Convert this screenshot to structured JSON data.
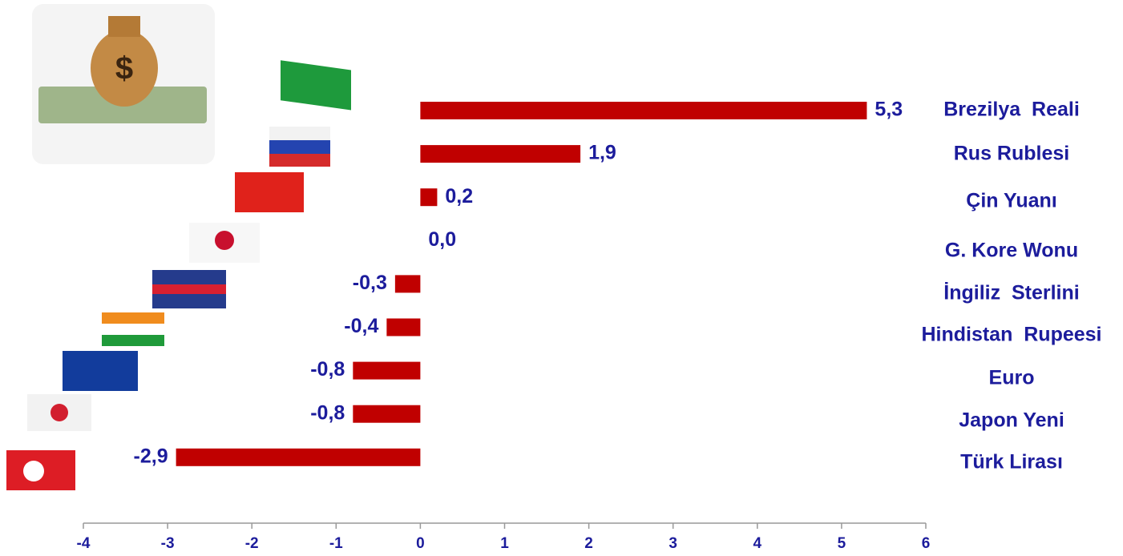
{
  "chart_data": {
    "type": "bar",
    "orientation": "horizontal",
    "categories": [
      "Brezilya  Reali",
      "Rus Rublesi",
      "Çin Yuanı",
      "G. Kore Wonu",
      "İngiliz  Sterlini",
      "Hindistan  Rupeesi",
      "Euro",
      "Japon Yeni",
      "Türk Lirası"
    ],
    "values": [
      5.3,
      1.9,
      0.2,
      0.0,
      -0.3,
      -0.4,
      -0.8,
      -0.8,
      -2.9
    ],
    "value_labels": [
      "5,3",
      "1,9",
      "0,2",
      "0,0",
      "-0,3",
      "-0,4",
      "-0,8",
      "-0,8",
      "-2,9"
    ],
    "color": "#c00000",
    "xlim": [
      -4,
      6
    ],
    "xticks": [
      -4,
      -3,
      -2,
      -1,
      0,
      1,
      2,
      3,
      4,
      5,
      6
    ],
    "grid": false
  }
}
